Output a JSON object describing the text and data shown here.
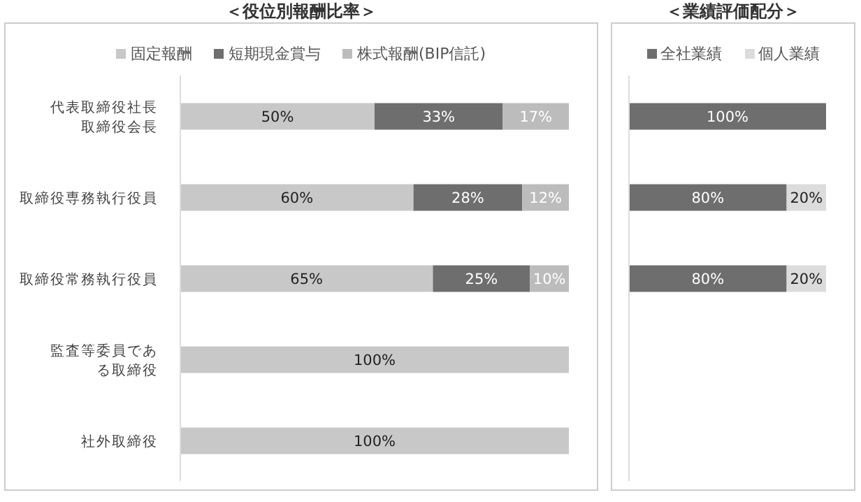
{
  "chart_data": [
    {
      "type": "bar",
      "orientation": "horizontal",
      "stacked": true,
      "title": "＜役位別報酬比率＞",
      "legend": "top",
      "tick_labels": "y",
      "xlim": [
        0,
        100
      ],
      "categories": [
        "代表取締役社長取締役会長",
        "取締役専務執行役員",
        "取締役常務執行役員",
        "監査等委員である取締役",
        "社外取締役"
      ],
      "series": [
        {
          "name": "固定報酬",
          "color": "#c8c8c8",
          "values": [
            50,
            60,
            65,
            100,
            100
          ],
          "value_labels": [
            "50%",
            "60%",
            "65%",
            "100%",
            "100%"
          ]
        },
        {
          "name": "短期現金賞与",
          "color": "#6e6e6e",
          "values": [
            33,
            28,
            25,
            null,
            null
          ],
          "value_labels": [
            "33%",
            "28%",
            "25%",
            null,
            null
          ]
        },
        {
          "name": "株式報酬(BIP信託)",
          "color": "#bcbcbc",
          "values": [
            17,
            12,
            10,
            null,
            null
          ],
          "value_labels": [
            "17%",
            "12%",
            "10%",
            null,
            null
          ]
        }
      ]
    },
    {
      "type": "bar",
      "orientation": "horizontal",
      "stacked": true,
      "title": "＜業績評価配分＞",
      "legend": "top",
      "tick_labels": false,
      "xlim": [
        0,
        100
      ],
      "categories": [
        null,
        null,
        null,
        null,
        null
      ],
      "series": [
        {
          "name": "全社業績",
          "color": "#6e6e6e",
          "values": [
            100,
            80,
            80,
            null,
            null
          ],
          "value_labels": [
            "100%",
            "80%",
            "80%",
            null,
            null
          ]
        },
        {
          "name": "個人業績",
          "color": "#dcdcdc",
          "values": [
            null,
            20,
            20,
            null,
            null
          ],
          "value_labels": [
            null,
            "20%",
            "20%",
            null,
            null
          ]
        }
      ]
    }
  ]
}
